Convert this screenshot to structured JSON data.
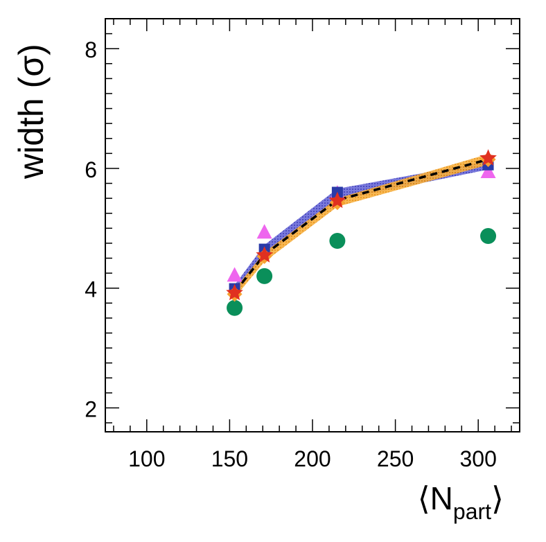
{
  "chart_data": {
    "type": "scatter",
    "title": "",
    "xlabel": "⟨N",
    "xlabel_sub": "part",
    "xlabel_close": "⟩",
    "ylabel": "width (σ)",
    "xlim": [
      75,
      325
    ],
    "ylim": [
      1.6,
      8.5
    ],
    "xticks": [
      100,
      150,
      200,
      250,
      300
    ],
    "xtick_labels": [
      "100",
      "150",
      "200",
      "250",
      "300"
    ],
    "yticks": [
      2,
      4,
      6,
      8
    ],
    "ytick_labels": [
      "2",
      "4",
      "6",
      "8"
    ],
    "x": [
      153,
      171,
      215,
      306
    ],
    "bands": [
      {
        "name": "blue band",
        "color": "#5a5ad0",
        "low": [
          3.88,
          4.52,
          5.47,
          5.98
        ],
        "high": [
          4.05,
          4.72,
          5.66,
          6.12
        ]
      },
      {
        "name": "orange band",
        "color": "#f5a020",
        "low": [
          3.84,
          4.44,
          5.36,
          6.06
        ],
        "high": [
          3.98,
          4.6,
          5.5,
          6.24
        ]
      }
    ],
    "series": [
      {
        "name": "dashed line",
        "style": "line",
        "color": "#000000",
        "values": [
          3.93,
          4.56,
          5.47,
          6.15
        ]
      },
      {
        "name": "green circles",
        "style": "circle",
        "color": "#0a8f5a",
        "values": [
          3.67,
          4.2,
          4.79,
          4.87
        ]
      },
      {
        "name": "magenta triangles",
        "style": "triangle",
        "color": "#ee66ee",
        "values": [
          4.2,
          4.92,
          5.57,
          5.93
        ]
      },
      {
        "name": "blue squares",
        "style": "square",
        "color": "#2a3aa8",
        "values": [
          3.99,
          4.65,
          5.6,
          6.06
        ]
      },
      {
        "name": "orange diamonds",
        "style": "diamond",
        "color": "#f7a030",
        "values": [
          3.9,
          4.53,
          5.43,
          6.15
        ]
      },
      {
        "name": "red stars",
        "style": "star",
        "color": "#e03020",
        "values": [
          3.92,
          4.55,
          5.46,
          6.17
        ]
      }
    ]
  }
}
